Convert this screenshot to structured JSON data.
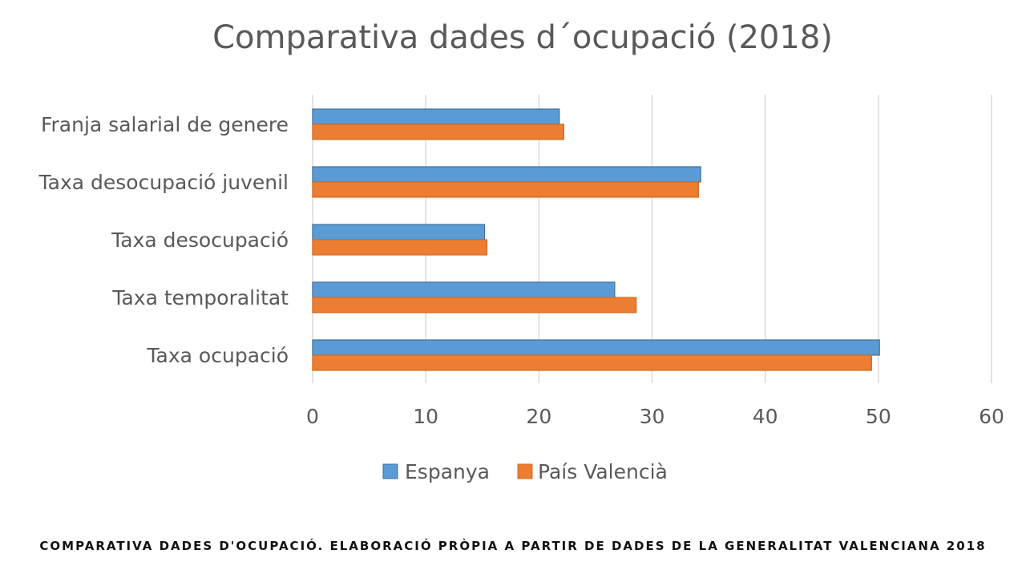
{
  "chart_data": {
    "type": "bar",
    "orientation": "horizontal",
    "title": "Comparativa dades d´ocupació (2018)",
    "categories": [
      "Franja salarial de genere",
      "Taxa desocupació juvenil",
      "Taxa desocupació",
      "Taxa temporalitat",
      "Taxa ocupació"
    ],
    "series": [
      {
        "name": "Espanya",
        "color": "#5B9BD5",
        "values": [
          21.8,
          34.3,
          15.2,
          26.7,
          50.1
        ]
      },
      {
        "name": "País Valencià",
        "color": "#ED7D31",
        "values": [
          22.2,
          34.1,
          15.4,
          28.6,
          49.4
        ]
      }
    ],
    "xlim": [
      0,
      60
    ],
    "xticks": [
      0,
      10,
      20,
      30,
      40,
      50,
      60
    ],
    "grid": "vertical",
    "legend_position": "bottom"
  },
  "caption": "COMPARATIVA DADES D'OCUPACIÓ. ELABORACIÓ PRÒPIA A PARTIR DE DADES DE LA GENERALITAT VALENCIANA 2018"
}
